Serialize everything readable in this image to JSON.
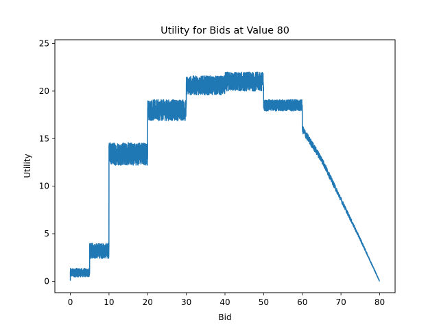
{
  "chart_data": {
    "type": "line",
    "title": "Utility for Bids at Value 80",
    "xlabel": "Bid",
    "ylabel": "Utility",
    "xlim": [
      -4,
      84
    ],
    "ylim": [
      -1.2,
      25.4
    ],
    "xticks": [
      0,
      10,
      20,
      30,
      40,
      50,
      60,
      70,
      80
    ],
    "yticks": [
      0,
      5,
      10,
      15,
      20,
      25
    ],
    "grid": false,
    "legend": "none",
    "series": [
      {
        "color": "#1f77b4",
        "segments": [
          {
            "x0": 0,
            "x1": 5,
            "center": 0.9,
            "noise": 0.45
          },
          {
            "x0": 5,
            "x1": 10,
            "center": 3.2,
            "noise": 0.8
          },
          {
            "x0": 10,
            "x1": 20,
            "center": 13.4,
            "noise": 1.2
          },
          {
            "x0": 20,
            "x1": 30,
            "center": 18.0,
            "noise": 1.1
          },
          {
            "x0": 30,
            "x1": 40,
            "center": 20.6,
            "noise": 1.0
          },
          {
            "x0": 40,
            "x1": 50,
            "center": 21.0,
            "noise": 1.0
          },
          {
            "x0": 50,
            "x1": 60,
            "center": 18.5,
            "noise": 0.6
          }
        ],
        "tail": [
          {
            "x": 60,
            "y": 16.0
          },
          {
            "x": 65,
            "y": 12.8
          },
          {
            "x": 70,
            "y": 8.6
          },
          {
            "x": 75,
            "y": 4.4
          },
          {
            "x": 80,
            "y": 0.0
          }
        ]
      }
    ]
  }
}
